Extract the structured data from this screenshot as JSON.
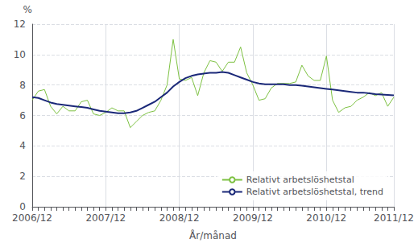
{
  "chart_data": {
    "type": "line",
    "xlabel": "År/månad",
    "ylabel": "%",
    "categories": [
      "2006/12",
      null,
      null,
      null,
      null,
      null,
      null,
      null,
      null,
      null,
      null,
      null,
      "2007/12",
      null,
      null,
      null,
      null,
      null,
      null,
      null,
      null,
      null,
      null,
      null,
      "2008/12",
      null,
      null,
      null,
      null,
      null,
      null,
      null,
      null,
      null,
      null,
      null,
      "2009/12",
      null,
      null,
      null,
      null,
      null,
      null,
      null,
      null,
      null,
      null,
      null,
      "2010/12",
      null,
      null,
      null,
      null,
      null,
      null,
      null,
      null,
      null,
      null,
      "2011/12"
    ],
    "series": [
      {
        "name": "Relativt arbetslöshetstal",
        "color": "#7dc142",
        "values": [
          7.0,
          7.6,
          7.7,
          6.6,
          6.1,
          6.6,
          6.3,
          6.3,
          6.9,
          7.0,
          6.1,
          6.0,
          6.2,
          6.5,
          6.3,
          6.3,
          5.2,
          5.6,
          6.0,
          6.2,
          6.3,
          7.0,
          8.0,
          11.0,
          8.4,
          8.3,
          8.5,
          7.3,
          8.8,
          9.6,
          9.5,
          8.9,
          9.5,
          9.5,
          10.5,
          8.8,
          8.0,
          7.0,
          7.1,
          7.8,
          8.1,
          8.1,
          8.1,
          8.2,
          9.3,
          8.6,
          8.3,
          8.3,
          9.9,
          7.0,
          6.2,
          6.5,
          6.6,
          7.0,
          7.2,
          7.5,
          7.3,
          7.5,
          6.6,
          7.2
        ]
      },
      {
        "name": "Relativt arbetslöshetstal, trend",
        "color": "#1a2878",
        "values": [
          7.2,
          7.15,
          7.0,
          6.85,
          6.75,
          6.7,
          6.65,
          6.6,
          6.55,
          6.5,
          6.4,
          6.3,
          6.25,
          6.2,
          6.15,
          6.15,
          6.2,
          6.3,
          6.5,
          6.7,
          6.9,
          7.2,
          7.5,
          7.9,
          8.2,
          8.45,
          8.6,
          8.7,
          8.75,
          8.8,
          8.8,
          8.85,
          8.8,
          8.65,
          8.5,
          8.35,
          8.2,
          8.1,
          8.05,
          8.05,
          8.05,
          8.05,
          8.0,
          8.0,
          7.95,
          7.9,
          7.85,
          7.8,
          7.75,
          7.7,
          7.65,
          7.6,
          7.55,
          7.5,
          7.5,
          7.45,
          7.4,
          7.38,
          7.35,
          7.32
        ]
      }
    ],
    "ylim": [
      0,
      12
    ],
    "yticks": [
      0,
      2,
      4,
      6,
      8,
      10,
      12
    ],
    "grid": true,
    "legend": "lower right"
  }
}
